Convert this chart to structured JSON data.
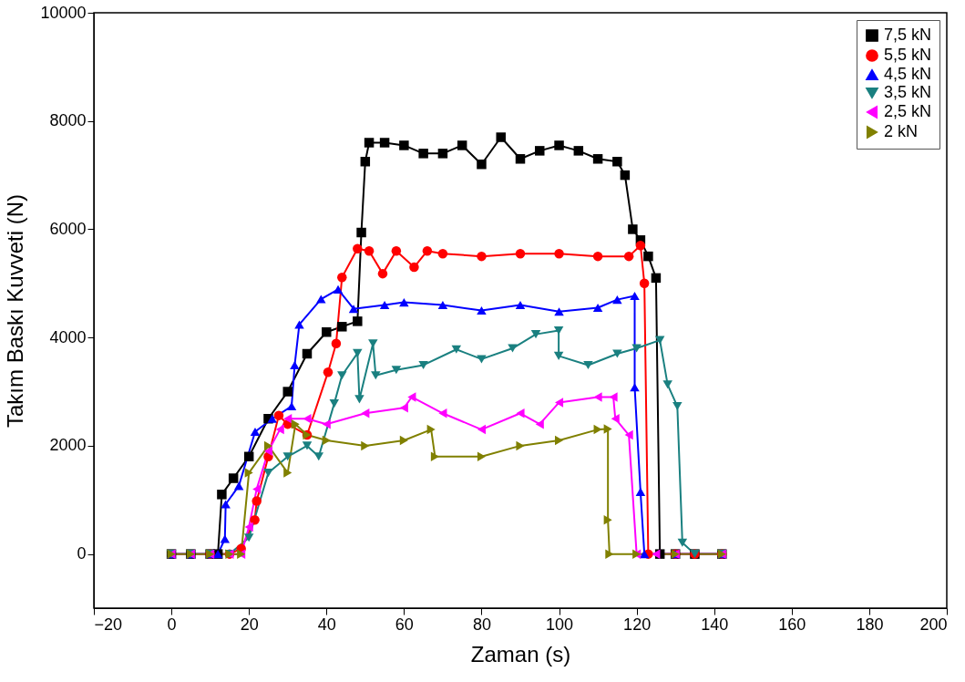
{
  "chart_data": {
    "type": "line",
    "xlabel": "Zaman (s)",
    "ylabel": "Takım Baskı Kuvveti (N)",
    "xlim": [
      -20,
      200
    ],
    "xticks": [
      -20,
      0,
      20,
      40,
      60,
      80,
      100,
      120,
      140,
      160,
      180,
      200
    ],
    "ylim": [
      -1000,
      10000
    ],
    "yticks": [
      0,
      2000,
      4000,
      6000,
      8000,
      10000
    ],
    "grid": false,
    "legend": "top right",
    "line_style": "solid",
    "series": [
      {
        "name": "7,5 kN",
        "color": "#000000",
        "marker": "square",
        "x": [
          0,
          5,
          10,
          12,
          13,
          16,
          20,
          25,
          30,
          35,
          40,
          44,
          48,
          49,
          50,
          51,
          55,
          60,
          65,
          70,
          75,
          80,
          85,
          90,
          95,
          100,
          105,
          110,
          115,
          117,
          119,
          121,
          123,
          125,
          126,
          130,
          135,
          142
        ],
        "values": [
          0,
          0,
          0,
          0,
          1100,
          1400,
          1800,
          2500,
          3000,
          3700,
          4100,
          4200,
          4300,
          5940,
          7250,
          7600,
          7600,
          7550,
          7400,
          7400,
          7550,
          7200,
          7700,
          7300,
          7450,
          7550,
          7450,
          7300,
          7250,
          7000,
          6000,
          5800,
          5500,
          5100,
          0,
          0,
          0,
          0
        ]
      },
      {
        "name": "5,5 kN",
        "color": "#ff0000",
        "marker": "circle",
        "x": [
          10,
          15,
          18,
          21.5,
          22,
          25,
          27.7,
          30,
          35,
          40.4,
          42.5,
          44,
          48,
          51,
          54.5,
          58,
          62.6,
          66,
          70,
          80,
          90,
          100,
          110,
          118,
          121,
          122,
          123,
          130,
          135,
          142
        ],
        "values": [
          0,
          0,
          100,
          630,
          980,
          1800,
          2560,
          2400,
          2200,
          3360,
          3890,
          5110,
          5640,
          5600,
          5180,
          5600,
          5300,
          5600,
          5550,
          5500,
          5550,
          5550,
          5500,
          5500,
          5700,
          5000,
          0,
          0,
          0,
          0
        ]
      },
      {
        "name": "4,5 kN",
        "color": "#0000ff",
        "marker": "triangle-up",
        "x": [
          0,
          5,
          10,
          12,
          13.8,
          14,
          17.4,
          21.6,
          26,
          31,
          31.8,
          33,
          38.6,
          43,
          47,
          55,
          60,
          70,
          80,
          90,
          100,
          110,
          115,
          119.5,
          119.5,
          121,
          122,
          130,
          142
        ],
        "values": [
          0,
          0,
          0,
          0,
          280,
          920,
          1260,
          2260,
          2500,
          2730,
          3490,
          4240,
          4710,
          4890,
          4530,
          4600,
          4650,
          4600,
          4500,
          4600,
          4480,
          4550,
          4700,
          4770,
          3080,
          1150,
          0,
          0,
          0
        ]
      },
      {
        "name": "3,5 kN",
        "color": "#1a8080",
        "marker": "triangle-down",
        "x": [
          0,
          5,
          10,
          15,
          20,
          25,
          30,
          35,
          38,
          42,
          44,
          48,
          48.5,
          52,
          52.7,
          58,
          65,
          73.5,
          80,
          88,
          94,
          99.9,
          99.9,
          107.5,
          115,
          120,
          126,
          128,
          130.5,
          131.8,
          135,
          142
        ],
        "values": [
          0,
          0,
          0,
          0,
          300,
          1500,
          1800,
          2000,
          1800,
          2780,
          3300,
          3710,
          2860,
          3890,
          3300,
          3400,
          3490,
          3780,
          3600,
          3800,
          4060,
          4130,
          3660,
          3490,
          3700,
          3800,
          3950,
          3130,
          2730,
          210,
          0,
          0
        ]
      },
      {
        "name": "2,5 kN",
        "color": "#ff00ff",
        "marker": "triangle-left",
        "x": [
          0,
          5,
          10,
          15,
          18,
          20,
          22,
          25,
          28,
          30,
          35,
          40,
          50,
          60,
          62,
          70,
          80,
          90,
          95,
          100,
          110,
          114,
          114.5,
          118,
          120,
          125,
          130,
          142
        ],
        "values": [
          0,
          0,
          0,
          0,
          0,
          500,
          1200,
          1900,
          2300,
          2500,
          2500,
          2400,
          2600,
          2700,
          2900,
          2600,
          2300,
          2600,
          2400,
          2800,
          2900,
          2900,
          2500,
          2200,
          0,
          0,
          0,
          0
        ]
      },
      {
        "name": "2 kN",
        "color": "#808000",
        "marker": "triangle-right",
        "x": [
          0,
          5,
          10,
          15,
          18,
          20,
          25,
          30,
          32,
          35,
          40,
          50,
          60,
          67,
          68,
          80,
          90,
          100,
          110,
          112.6,
          112.6,
          113,
          120,
          130,
          142
        ],
        "values": [
          0,
          0,
          0,
          0,
          0,
          1500,
          2000,
          1500,
          2400,
          2200,
          2100,
          2000,
          2100,
          2300,
          1800,
          1800,
          2000,
          2100,
          2300,
          2310,
          630,
          0,
          0,
          0,
          0
        ]
      }
    ]
  }
}
